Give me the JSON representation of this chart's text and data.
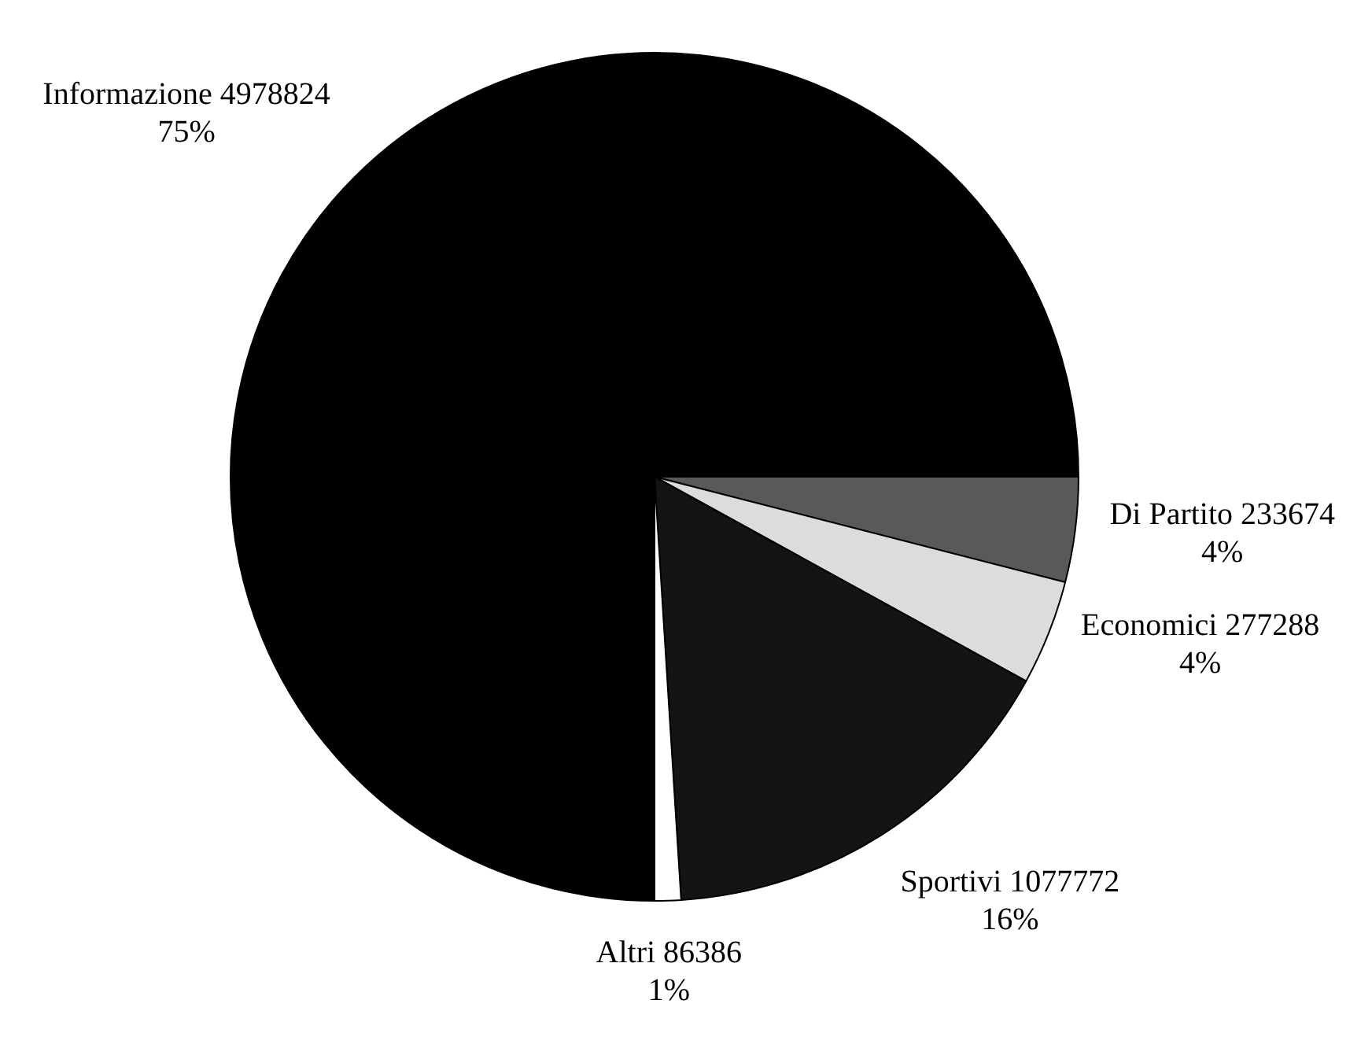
{
  "chart_data": {
    "type": "pie",
    "categories": [
      "Di Partito 233674",
      "Economici 277288",
      "Sportivi 1077772",
      "Altri 86386",
      "Informazione 4978824"
    ],
    "values": [
      4,
      4,
      16,
      1,
      75
    ],
    "colors": [
      "#595959",
      "#dcdcdc",
      "#141414",
      "#ffffff",
      "#000000"
    ],
    "value_labels": [
      "4%",
      "4%",
      "16%",
      "1%",
      "75%"
    ],
    "legend": false
  }
}
